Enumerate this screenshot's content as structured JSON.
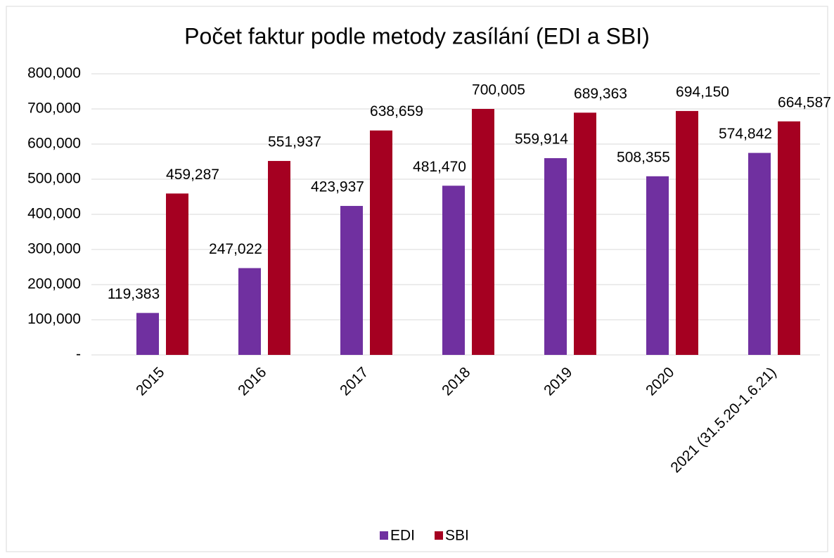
{
  "chart_data": {
    "type": "bar",
    "title": "Počet faktur podle metody zasílání (EDI a SBI)",
    "categories": [
      "2015",
      "2016",
      "2017",
      "2018",
      "2019",
      "2020",
      "2021 (31.5.20-1.6.21)"
    ],
    "series": [
      {
        "name": "EDI",
        "color": "#7030a0",
        "values": [
          119383,
          247022,
          423937,
          481470,
          559914,
          508355,
          574842
        ],
        "value_labels": [
          "119,383",
          "247,022",
          "423,937",
          "481,470",
          "559,914",
          "508,355",
          "574,842"
        ]
      },
      {
        "name": "SBI",
        "color": "#a50021",
        "values": [
          459287,
          551937,
          638659,
          700005,
          689363,
          694150,
          664587
        ],
        "value_labels": [
          "459,287",
          "551,937",
          "638,659",
          "700,005",
          "689,363",
          "694,150",
          "664,587"
        ]
      }
    ],
    "ylim": [
      0,
      800000
    ],
    "yticks": [
      {
        "value": 0,
        "label": "-"
      },
      {
        "value": 100000,
        "label": "100,000"
      },
      {
        "value": 200000,
        "label": "200,000"
      },
      {
        "value": 300000,
        "label": "300,000"
      },
      {
        "value": 400000,
        "label": "400,000"
      },
      {
        "value": 500000,
        "label": "500,000"
      },
      {
        "value": 600000,
        "label": "600,000"
      },
      {
        "value": 700000,
        "label": "700,000"
      },
      {
        "value": 800000,
        "label": "800,000"
      }
    ],
    "grid": true,
    "legend": "bottom"
  }
}
